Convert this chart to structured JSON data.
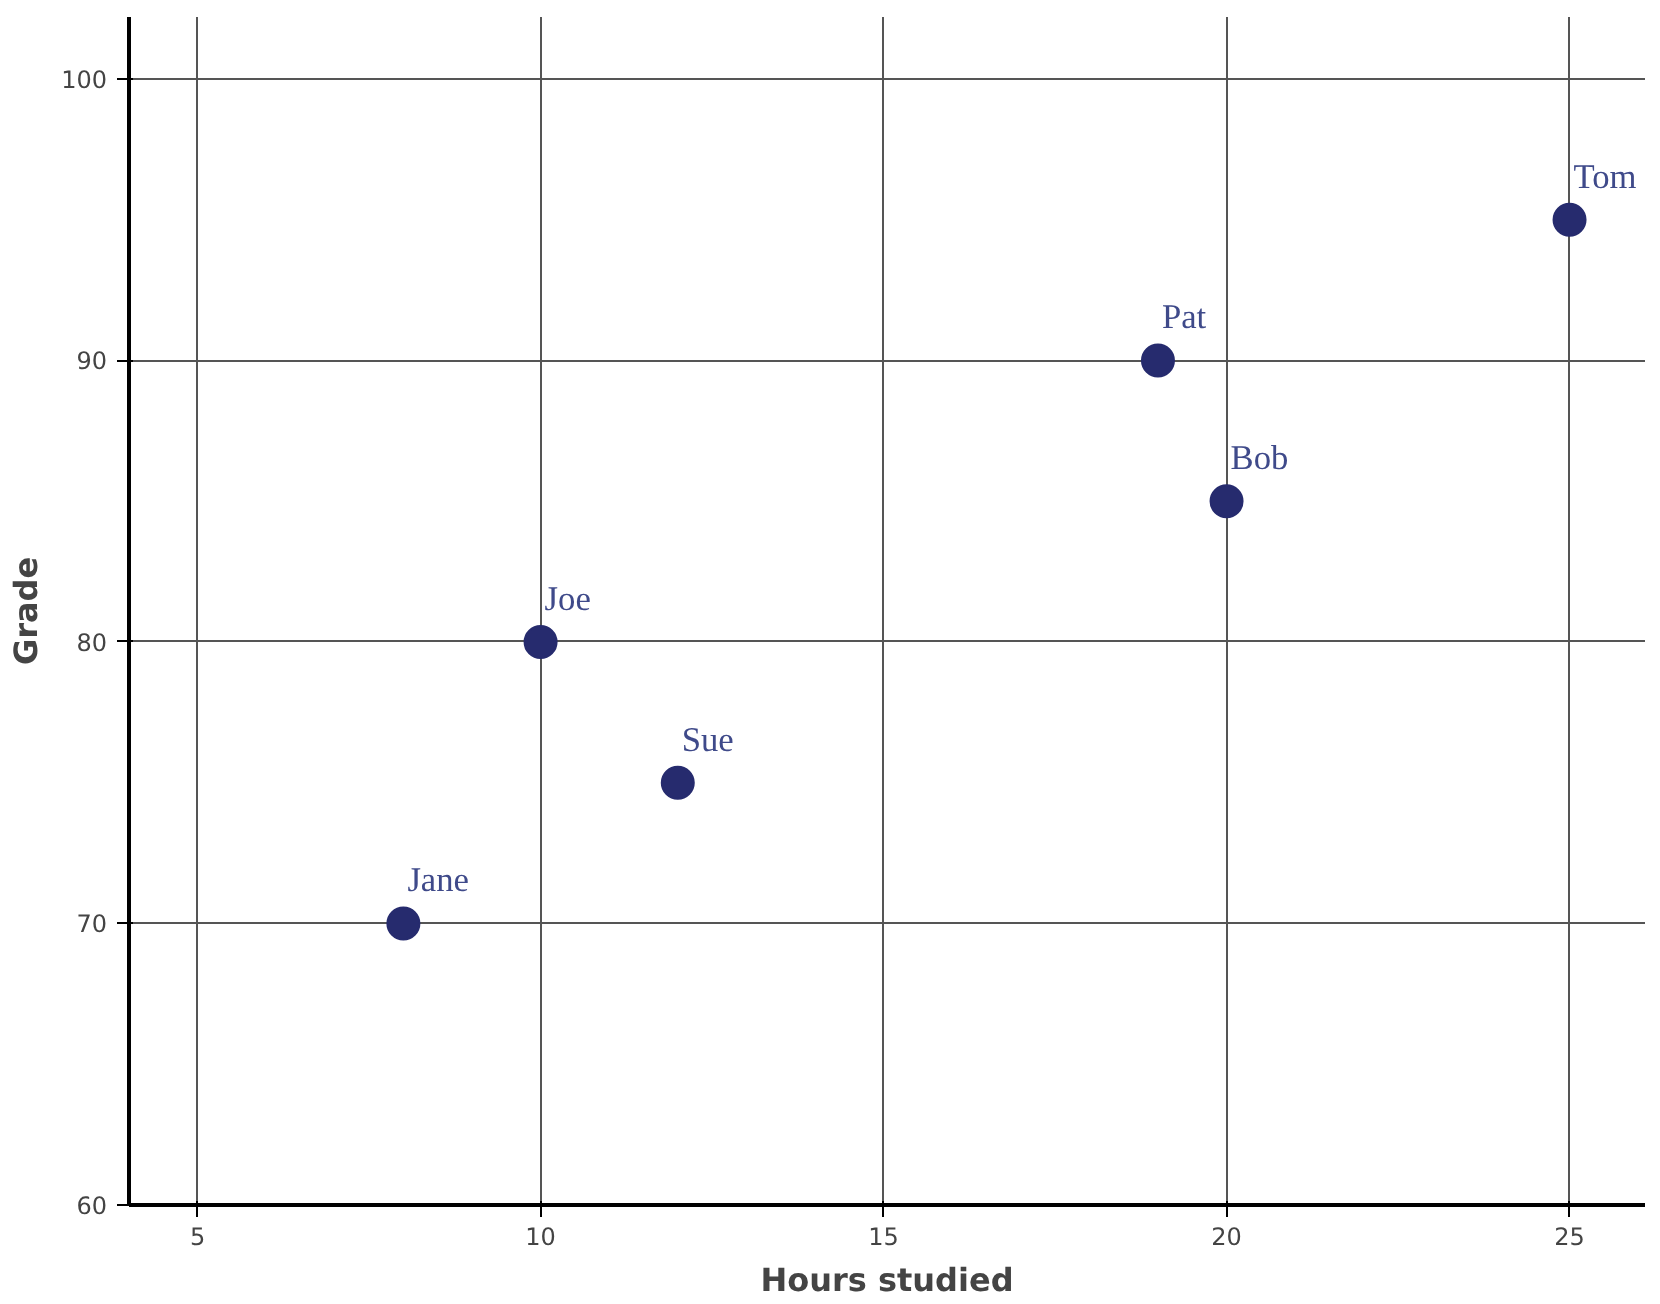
{
  "chart_data": {
    "type": "scatter",
    "xlabel": "Hours studied",
    "ylabel": "Grade",
    "x": [
      8,
      10,
      12,
      19,
      20,
      25
    ],
    "series": [
      {
        "color": "#262b6e",
        "values": [
          70,
          80,
          75,
          90,
          85,
          95
        ]
      }
    ],
    "annotations": [
      {
        "text": "Jane",
        "x": 8,
        "y": 70
      },
      {
        "text": "Joe",
        "x": 10,
        "y": 80
      },
      {
        "text": "Sue",
        "x": 12,
        "y": 75
      },
      {
        "text": "Pat",
        "x": 19,
        "y": 90
      },
      {
        "text": "Bob",
        "x": 20,
        "y": 85
      },
      {
        "text": "Tom",
        "x": 25,
        "y": 95
      }
    ],
    "xlim": [
      4,
      26.1
    ],
    "ylim": [
      60,
      102.2
    ],
    "xticks": [
      5,
      10,
      15,
      20,
      25
    ],
    "yticks": [
      60,
      70,
      80,
      90,
      100
    ],
    "grid": true,
    "marker": "circle"
  }
}
